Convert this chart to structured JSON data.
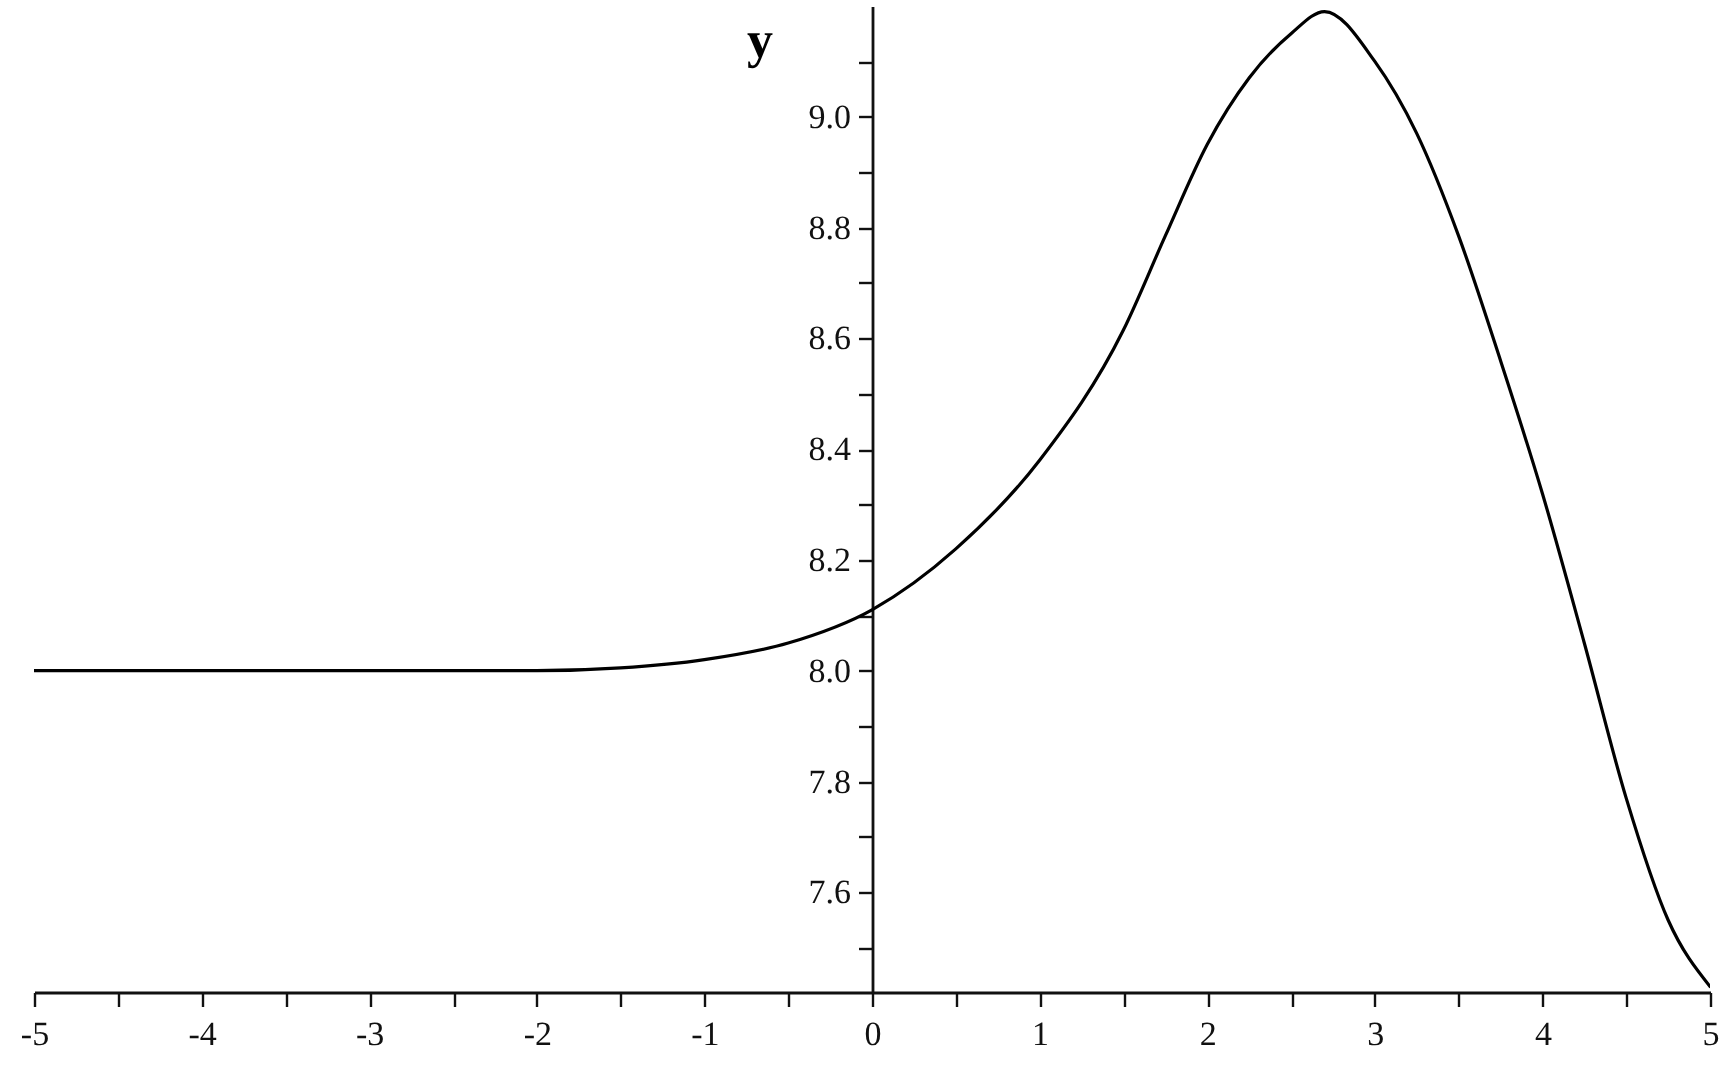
{
  "chart_data": {
    "type": "line",
    "ylabel": "y",
    "x": [
      -5,
      -4,
      -3,
      -2,
      -1.5,
      -1,
      -0.5,
      0,
      0.5,
      1,
      1.5,
      1.75,
      2,
      2.25,
      2.5,
      2.7,
      3,
      3.25,
      3.5,
      3.75,
      4,
      4.25,
      4.5,
      4.75,
      5
    ],
    "series": [
      {
        "color": "#000000",
        "values": [
          8.0,
          8.0,
          8.0,
          8.0,
          8.005,
          8.02,
          8.05,
          8.11,
          8.22,
          8.38,
          8.615,
          8.785,
          8.95,
          9.07,
          9.15,
          9.19,
          9.1,
          8.97,
          8.785,
          8.56,
          8.32,
          8.05,
          7.77,
          7.55,
          7.43
        ]
      }
    ],
    "xlim": [
      -5,
      5
    ],
    "ylim": [
      7.42,
      9.2
    ],
    "xticks": [
      -5,
      {
        "value": -4.5,
        "label": null
      },
      -4,
      {
        "value": -3.5,
        "label": null
      },
      -3,
      {
        "value": -2.5,
        "label": null
      },
      -2,
      {
        "value": -1.5,
        "label": null
      },
      -1,
      {
        "value": -0.5,
        "label": null
      },
      0,
      {
        "value": 0.5,
        "label": null
      },
      1,
      {
        "value": 1.5,
        "label": null
      },
      2,
      {
        "value": 2.5,
        "label": null
      },
      3,
      {
        "value": 3.5,
        "label": null
      },
      4,
      {
        "value": 4.5,
        "label": null
      },
      5
    ],
    "yticks": [
      {
        "value": 7.5,
        "label": null
      },
      {
        "value": 7.6,
        "label": "7.6"
      },
      {
        "value": 7.7,
        "label": null
      },
      {
        "value": 7.8,
        "label": "7.8"
      },
      {
        "value": 7.9,
        "label": null
      },
      {
        "value": 8.0,
        "label": "8.0"
      },
      {
        "value": 8.1,
        "label": null
      },
      {
        "value": 8.2,
        "label": "8.2"
      },
      {
        "value": 8.3,
        "label": null
      },
      {
        "value": 8.4,
        "label": "8.4"
      },
      {
        "value": 8.5,
        "label": null
      },
      {
        "value": 8.6,
        "label": "8.6"
      },
      {
        "value": 8.7,
        "label": null
      },
      {
        "value": 8.8,
        "label": "8.8"
      },
      {
        "value": 8.9,
        "label": null
      },
      {
        "value": 9.0,
        "label": "9.0"
      },
      {
        "value": 9.1,
        "label": null
      }
    ],
    "grid": false,
    "legend": false,
    "marker": "none",
    "line_style": "solid"
  }
}
